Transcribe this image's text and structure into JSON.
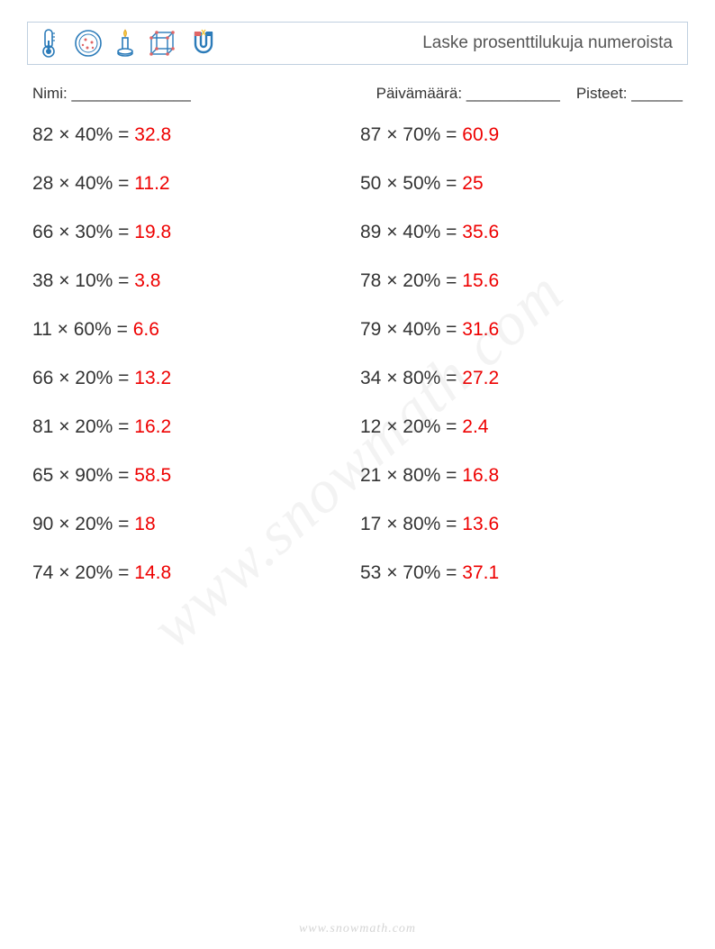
{
  "header": {
    "title": "Laske prosenttilukuja numeroista",
    "icons": [
      "thermometer-icon",
      "petri-dish-icon",
      "candle-icon",
      "cube-icon",
      "magnet-icon"
    ],
    "icon_stroke": "#2b7bb9",
    "icon_accent": "#e06666",
    "icon_yellow": "#f4c842",
    "border_color": "#c0d0e0"
  },
  "meta": {
    "name_label": "Nimi:",
    "name_blank": "______________",
    "date_label": "Päivämäärä:",
    "date_blank": "___________",
    "score_label": "Pisteet:",
    "score_blank": "______"
  },
  "layout": {
    "problem_fontsize": 21,
    "answer_color": "#ee0000",
    "text_color": "#333333",
    "row_gap": 30
  },
  "problems": {
    "left": [
      {
        "expr": "82 × 40% = ",
        "ans": "32.8"
      },
      {
        "expr": "28 × 40% = ",
        "ans": "11.2"
      },
      {
        "expr": "66 × 30% = ",
        "ans": "19.8"
      },
      {
        "expr": "38 × 10% = ",
        "ans": "3.8"
      },
      {
        "expr": "11 × 60% = ",
        "ans": "6.6"
      },
      {
        "expr": "66 × 20% = ",
        "ans": "13.2"
      },
      {
        "expr": "81 × 20% = ",
        "ans": "16.2"
      },
      {
        "expr": "65 × 90% = ",
        "ans": "58.5"
      },
      {
        "expr": "90 × 20% = ",
        "ans": "18"
      },
      {
        "expr": "74 × 20% = ",
        "ans": "14.8"
      }
    ],
    "right": [
      {
        "expr": "87 × 70% = ",
        "ans": "60.9"
      },
      {
        "expr": "50 × 50% = ",
        "ans": "25"
      },
      {
        "expr": "89 × 40% = ",
        "ans": "35.6"
      },
      {
        "expr": "78 × 20% = ",
        "ans": "15.6"
      },
      {
        "expr": "79 × 40% = ",
        "ans": "31.6"
      },
      {
        "expr": "34 × 80% = ",
        "ans": "27.2"
      },
      {
        "expr": "12 × 20% = ",
        "ans": "2.4"
      },
      {
        "expr": "21 × 80% = ",
        "ans": "16.8"
      },
      {
        "expr": "17 × 80% = ",
        "ans": "13.6"
      },
      {
        "expr": "53 × 70% = ",
        "ans": "37.1"
      }
    ]
  },
  "watermark": "www.snowmath.com",
  "footer": "www.snowmath.com"
}
